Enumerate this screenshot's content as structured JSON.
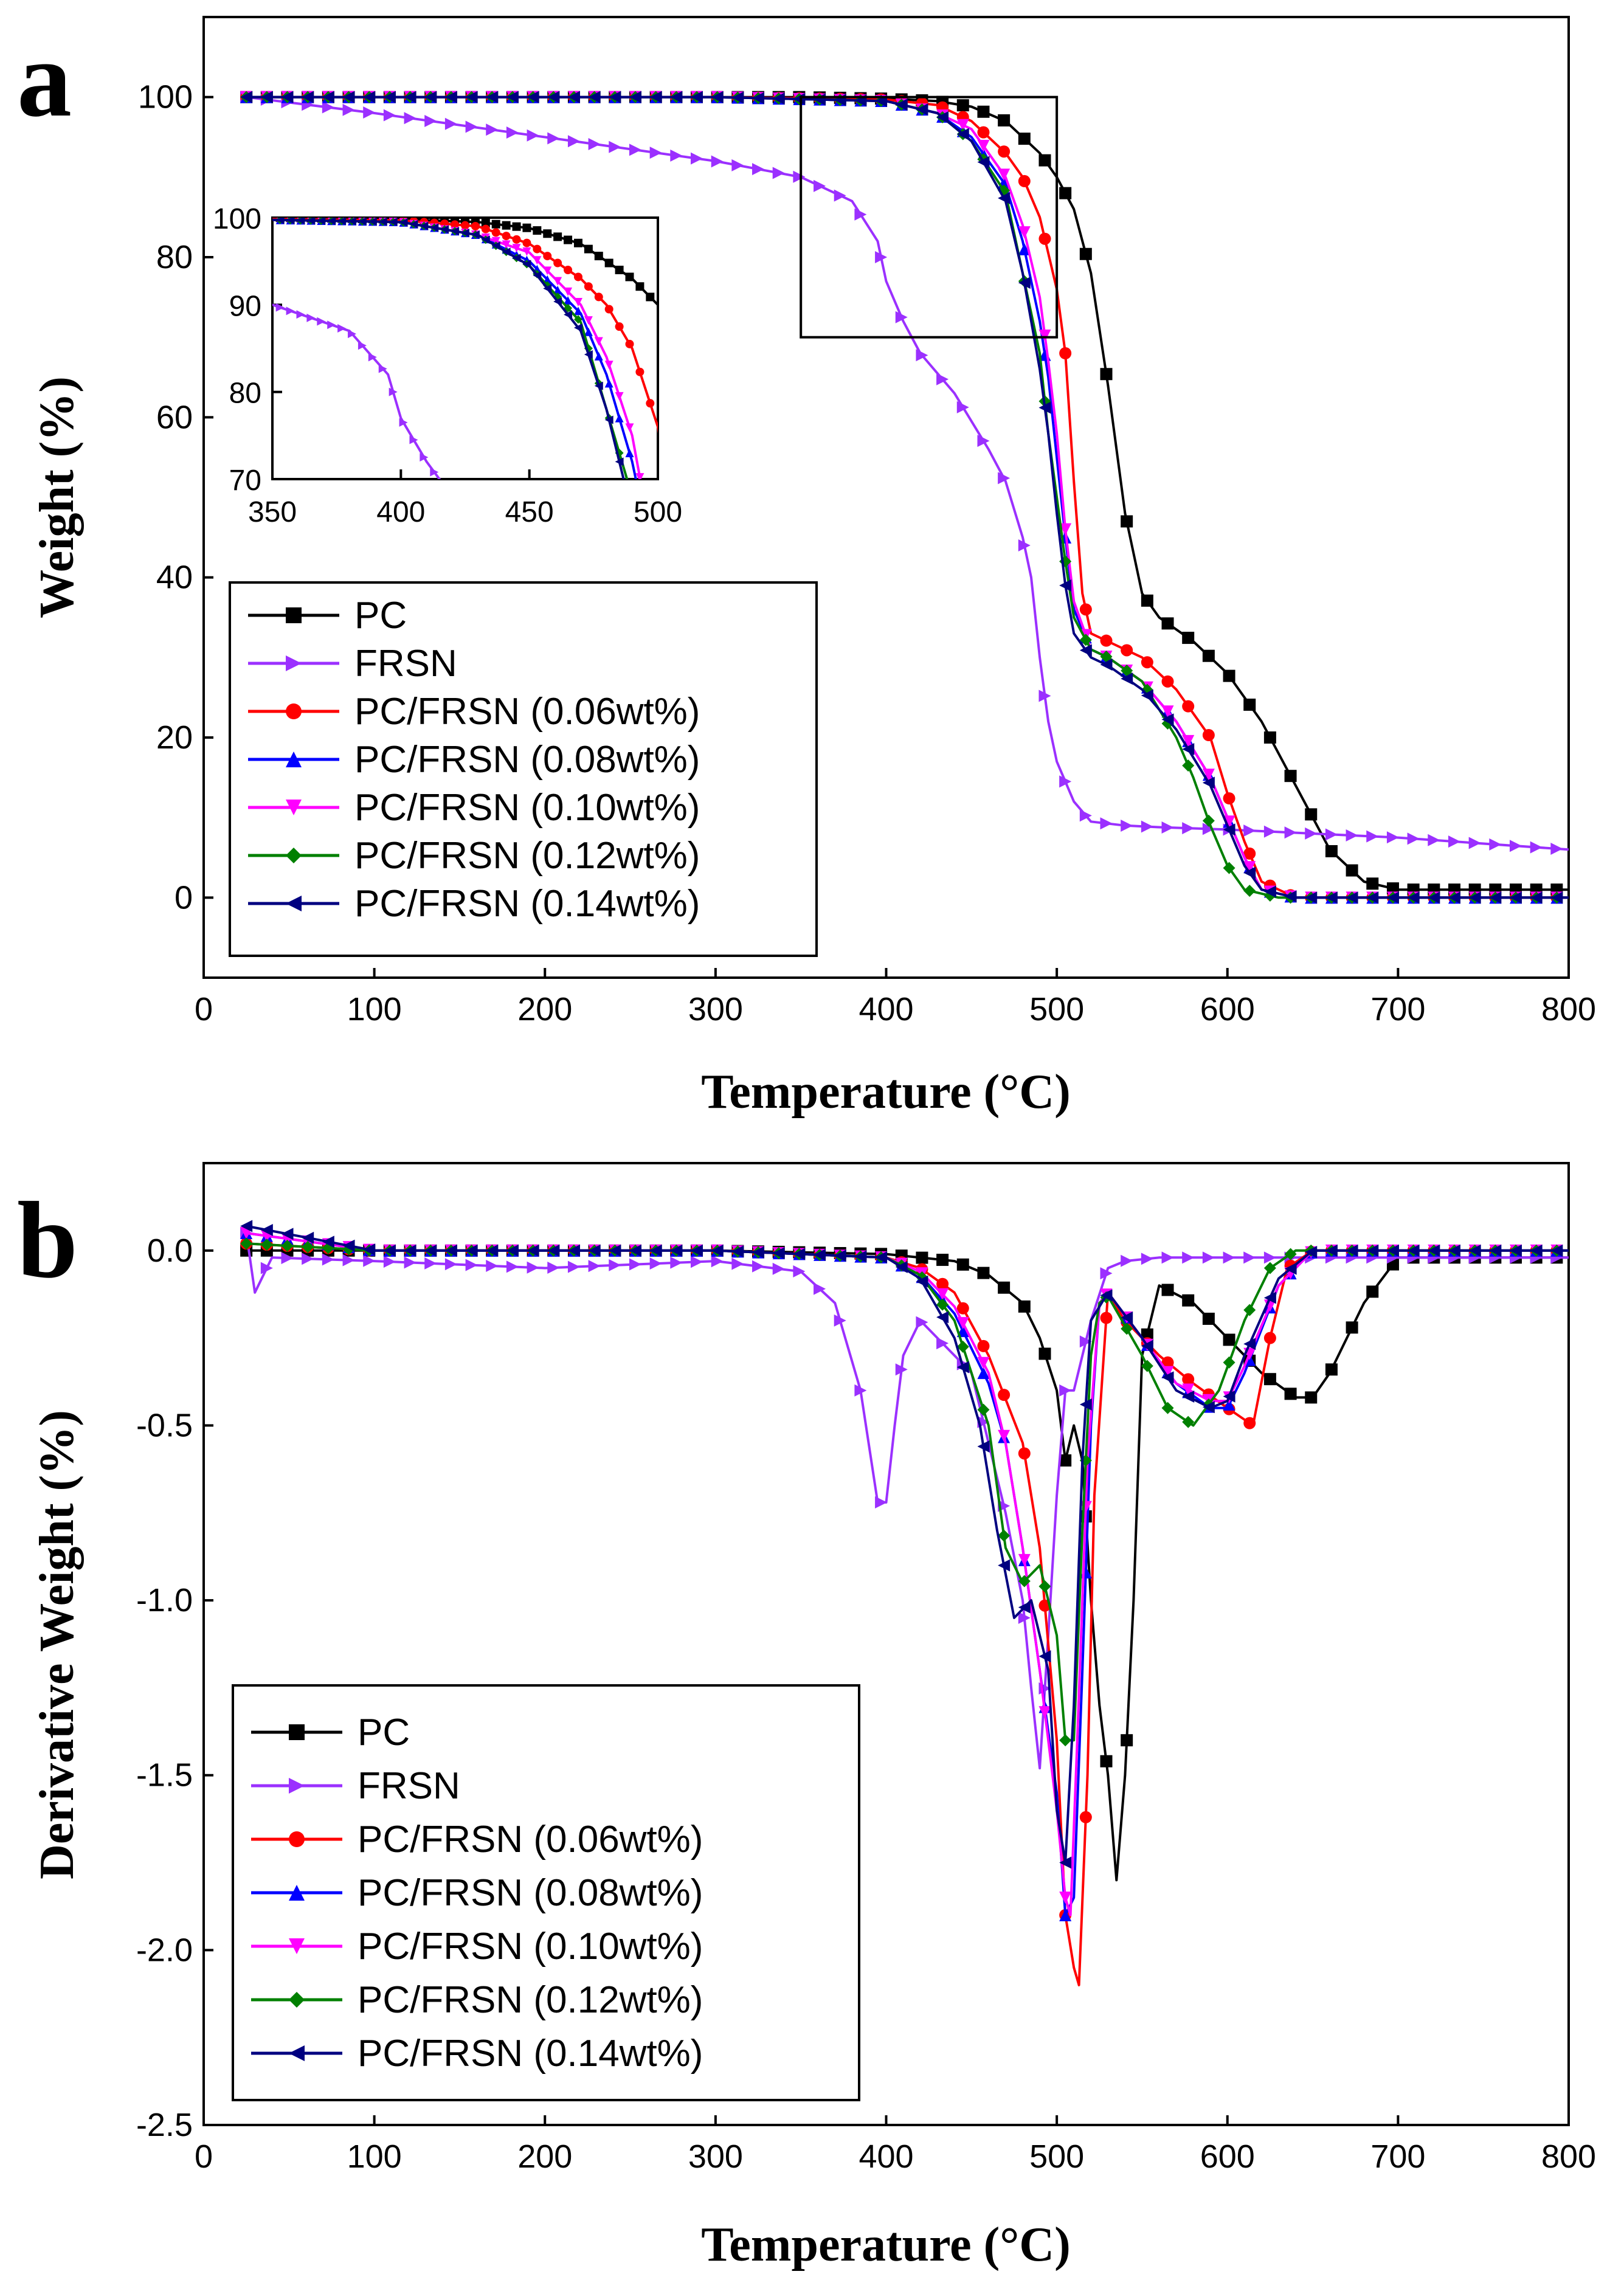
{
  "chart_data": [
    {
      "panel_label": "a",
      "type": "line",
      "xlabel": "Temperature (°C)",
      "ylabel": "Weight (%)",
      "xlim": [
        0,
        800
      ],
      "ylim": [
        -10,
        110
      ],
      "xticks": [
        0,
        100,
        200,
        300,
        400,
        500,
        600,
        700,
        800
      ],
      "yticks": [
        0,
        20,
        40,
        60,
        80,
        100
      ],
      "legend_position": "bottom-left",
      "zoom_box": {
        "x_range": [
          350,
          500
        ],
        "y_range": [
          70,
          100
        ]
      },
      "inset": {
        "xlim": [
          350,
          500
        ],
        "ylim": [
          70,
          100
        ],
        "xticks": [
          350,
          400,
          450,
          500
        ],
        "yticks": [
          70,
          80,
          90,
          100
        ]
      },
      "series": [
        {
          "name": "PC",
          "color": "#000000",
          "marker": "square",
          "x": [
            25,
            100,
            200,
            300,
            350,
            400,
            430,
            450,
            470,
            490,
            500,
            510,
            520,
            530,
            540,
            550,
            560,
            580,
            600,
            620,
            640,
            660,
            680,
            700,
            800
          ],
          "y": [
            100,
            100,
            100,
            100,
            100,
            99.8,
            99.5,
            98.8,
            97,
            93,
            90,
            86,
            78,
            64,
            48,
            38,
            35,
            32,
            28,
            22,
            14,
            6,
            2,
            1,
            1
          ]
        },
        {
          "name": "FRSN",
          "color": "#9b30ff",
          "marker": "triangle-right",
          "x": [
            25,
            100,
            200,
            300,
            350,
            380,
            395,
            400,
            410,
            420,
            440,
            460,
            470,
            480,
            485,
            490,
            495,
            500,
            510,
            520,
            540,
            560,
            600,
            700,
            800
          ],
          "y": [
            100,
            98,
            95,
            92,
            90,
            87,
            82,
            77,
            72,
            68,
            63,
            56,
            52,
            45,
            40,
            30,
            22,
            17,
            12,
            9.5,
            9,
            8.8,
            8.5,
            7.5,
            6
          ]
        },
        {
          "name": "PC/FRSN (0.06wt%)",
          "color": "#ff0000",
          "marker": "circle",
          "x": [
            25,
            300,
            400,
            430,
            450,
            470,
            480,
            490,
            500,
            505,
            510,
            515,
            520,
            530,
            550,
            570,
            590,
            600,
            610,
            620,
            640,
            800
          ],
          "y": [
            100,
            100,
            99.7,
            99,
            97,
            93,
            90,
            85,
            76,
            68,
            52,
            38,
            33,
            32,
            30,
            26,
            20,
            13,
            7,
            2,
            0,
            0
          ]
        },
        {
          "name": "PC/FRSN (0.08wt%)",
          "color": "#0000ff",
          "marker": "triangle-up",
          "x": [
            25,
            300,
            400,
            430,
            450,
            470,
            480,
            490,
            495,
            500,
            505,
            510,
            520,
            530,
            550,
            570,
            590,
            600,
            610,
            620,
            640,
            800
          ],
          "y": [
            100,
            100,
            99.5,
            98,
            95,
            89,
            82,
            72,
            65,
            55,
            45,
            36,
            31,
            30,
            27,
            22,
            15,
            10,
            5,
            1,
            0,
            0
          ]
        },
        {
          "name": "PC/FRSN (0.10wt%)",
          "color": "#ff00ff",
          "marker": "triangle-down",
          "x": [
            25,
            300,
            400,
            430,
            450,
            470,
            480,
            490,
            495,
            500,
            505,
            510,
            520,
            530,
            550,
            570,
            590,
            600,
            610,
            620,
            640,
            800
          ],
          "y": [
            100,
            100,
            99.5,
            98,
            96,
            90,
            84,
            75,
            67,
            58,
            46,
            37,
            31,
            30,
            27,
            22,
            15,
            10,
            5,
            1,
            0,
            0
          ]
        },
        {
          "name": "PC/FRSN (0.12wt%)",
          "color": "#008000",
          "marker": "diamond",
          "x": [
            25,
            300,
            400,
            430,
            450,
            470,
            480,
            490,
            495,
            500,
            505,
            510,
            520,
            530,
            550,
            570,
            580,
            590,
            600,
            610,
            630,
            800
          ],
          "y": [
            100,
            100,
            99.5,
            98,
            94.5,
            88,
            78,
            68,
            58,
            50,
            42,
            35,
            31,
            30,
            27,
            20,
            15,
            9,
            4,
            1,
            0,
            0
          ]
        },
        {
          "name": "PC/FRSN (0.14wt%)",
          "color": "#000080",
          "marker": "triangle-left",
          "x": [
            25,
            300,
            400,
            430,
            450,
            470,
            480,
            490,
            495,
            500,
            505,
            510,
            520,
            530,
            550,
            570,
            590,
            600,
            610,
            620,
            640,
            800
          ],
          "y": [
            100,
            100,
            99.5,
            98,
            94.5,
            87,
            78,
            66,
            58,
            48,
            39,
            33,
            30,
            29,
            26,
            21,
            14,
            9,
            4,
            1,
            0,
            0
          ]
        }
      ]
    },
    {
      "panel_label": "b",
      "type": "line",
      "xlabel": "Temperature (°C)",
      "ylabel": "Derivative Weight (%)",
      "xlim": [
        0,
        800
      ],
      "ylim": [
        -2.5,
        0.25
      ],
      "xticks": [
        0,
        100,
        200,
        300,
        400,
        500,
        600,
        700,
        800
      ],
      "yticks": [
        0.0,
        -0.5,
        -1.0,
        -1.5,
        -2.0,
        -2.5
      ],
      "ytick_labels": [
        "0.0",
        "-0.5",
        "-1.0",
        "-1.5",
        "-2.0",
        "-2.5"
      ],
      "legend_position": "bottom-left",
      "series": [
        {
          "name": "PC",
          "color": "#000000",
          "marker": "square",
          "x": [
            25,
            100,
            300,
            400,
            440,
            460,
            480,
            490,
            500,
            505,
            510,
            515,
            520,
            525,
            530,
            535,
            540,
            545,
            550,
            560,
            580,
            600,
            620,
            640,
            650,
            660,
            680,
            700,
            800
          ],
          "y": [
            0,
            0,
            0,
            -0.01,
            -0.03,
            -0.07,
            -0.15,
            -0.25,
            -0.4,
            -0.6,
            -0.5,
            -0.6,
            -1.0,
            -1.3,
            -1.5,
            -1.8,
            -1.5,
            -1.0,
            -0.3,
            -0.1,
            -0.15,
            -0.25,
            -0.35,
            -0.42,
            -0.42,
            -0.35,
            -0.15,
            -0.02,
            -0.02
          ]
        },
        {
          "name": "FRSN",
          "color": "#9b30ff",
          "marker": "triangle-right",
          "x": [
            25,
            30,
            40,
            100,
            200,
            300,
            350,
            370,
            385,
            395,
            400,
            405,
            410,
            420,
            430,
            440,
            450,
            460,
            470,
            480,
            485,
            490,
            495,
            500,
            505,
            510,
            520,
            530,
            540,
            560,
            800
          ],
          "y": [
            0.05,
            -0.12,
            -0.02,
            -0.03,
            -0.05,
            -0.03,
            -0.06,
            -0.15,
            -0.4,
            -0.72,
            -0.72,
            -0.5,
            -0.3,
            -0.2,
            -0.25,
            -0.3,
            -0.35,
            -0.55,
            -0.75,
            -1.0,
            -1.25,
            -1.48,
            -1.1,
            -0.7,
            -0.4,
            -0.4,
            -0.2,
            -0.05,
            -0.03,
            -0.02,
            -0.02
          ]
        },
        {
          "name": "PC/FRSN (0.06wt%)",
          "color": "#ff0000",
          "marker": "circle",
          "x": [
            25,
            100,
            300,
            400,
            420,
            440,
            460,
            480,
            490,
            500,
            505,
            510,
            513,
            518,
            522,
            530,
            540,
            560,
            580,
            600,
            615,
            625,
            635,
            650,
            700,
            800
          ],
          "y": [
            0.02,
            0,
            0,
            -0.02,
            -0.05,
            -0.12,
            -0.3,
            -0.55,
            -0.85,
            -1.4,
            -1.9,
            -2.05,
            -2.1,
            -1.5,
            -0.7,
            -0.12,
            -0.2,
            -0.3,
            -0.38,
            -0.45,
            -0.5,
            -0.25,
            -0.05,
            0,
            0,
            0
          ]
        },
        {
          "name": "PC/FRSN (0.08wt%)",
          "color": "#0000ff",
          "marker": "triangle-up",
          "x": [
            25,
            100,
            300,
            400,
            420,
            440,
            460,
            470,
            480,
            490,
            500,
            505,
            510,
            515,
            520,
            525,
            530,
            550,
            570,
            590,
            600,
            610,
            630,
            650,
            700,
            800
          ],
          "y": [
            0.05,
            0,
            0,
            -0.02,
            -0.07,
            -0.18,
            -0.38,
            -0.55,
            -0.85,
            -1.2,
            -1.55,
            -1.9,
            -1.85,
            -1.2,
            -0.5,
            -0.15,
            -0.12,
            -0.25,
            -0.38,
            -0.45,
            -0.45,
            -0.35,
            -0.1,
            0,
            0,
            0
          ]
        },
        {
          "name": "PC/FRSN (0.10wt%)",
          "color": "#ff00ff",
          "marker": "triangle-down",
          "x": [
            25,
            100,
            300,
            400,
            420,
            440,
            460,
            470,
            480,
            490,
            500,
            505,
            508,
            512,
            518,
            525,
            530,
            550,
            570,
            590,
            600,
            610,
            630,
            650,
            700,
            800
          ],
          "y": [
            0.05,
            0,
            0,
            -0.02,
            -0.06,
            -0.16,
            -0.35,
            -0.55,
            -0.85,
            -1.2,
            -1.6,
            -1.85,
            -1.9,
            -1.4,
            -0.6,
            -0.15,
            -0.12,
            -0.25,
            -0.38,
            -0.43,
            -0.43,
            -0.33,
            -0.1,
            0,
            0,
            0
          ]
        },
        {
          "name": "PC/FRSN (0.12wt%)",
          "color": "#008000",
          "marker": "diamond",
          "x": [
            25,
            100,
            300,
            400,
            420,
            440,
            460,
            470,
            480,
            490,
            500,
            505,
            510,
            515,
            520,
            525,
            530,
            550,
            565,
            580,
            595,
            610,
            625,
            640,
            700,
            800
          ],
          "y": [
            0.02,
            0,
            0,
            -0.02,
            -0.07,
            -0.2,
            -0.5,
            -0.85,
            -0.95,
            -0.9,
            -1.1,
            -1.4,
            -1.4,
            -0.8,
            -0.3,
            -0.15,
            -0.13,
            -0.3,
            -0.45,
            -0.5,
            -0.4,
            -0.2,
            -0.05,
            0,
            0,
            0
          ]
        },
        {
          "name": "PC/FRSN (0.14wt%)",
          "color": "#000080",
          "marker": "triangle-left",
          "x": [
            25,
            100,
            300,
            400,
            420,
            440,
            455,
            465,
            475,
            485,
            495,
            500,
            505,
            510,
            515,
            520,
            530,
            550,
            570,
            590,
            600,
            610,
            630,
            650,
            700,
            800
          ],
          "y": [
            0.07,
            0,
            0,
            -0.02,
            -0.08,
            -0.25,
            -0.5,
            -0.8,
            -1.05,
            -1.0,
            -1.2,
            -1.6,
            -1.75,
            -1.3,
            -0.6,
            -0.2,
            -0.12,
            -0.25,
            -0.4,
            -0.45,
            -0.43,
            -0.3,
            -0.08,
            0,
            0,
            0
          ]
        }
      ]
    }
  ]
}
